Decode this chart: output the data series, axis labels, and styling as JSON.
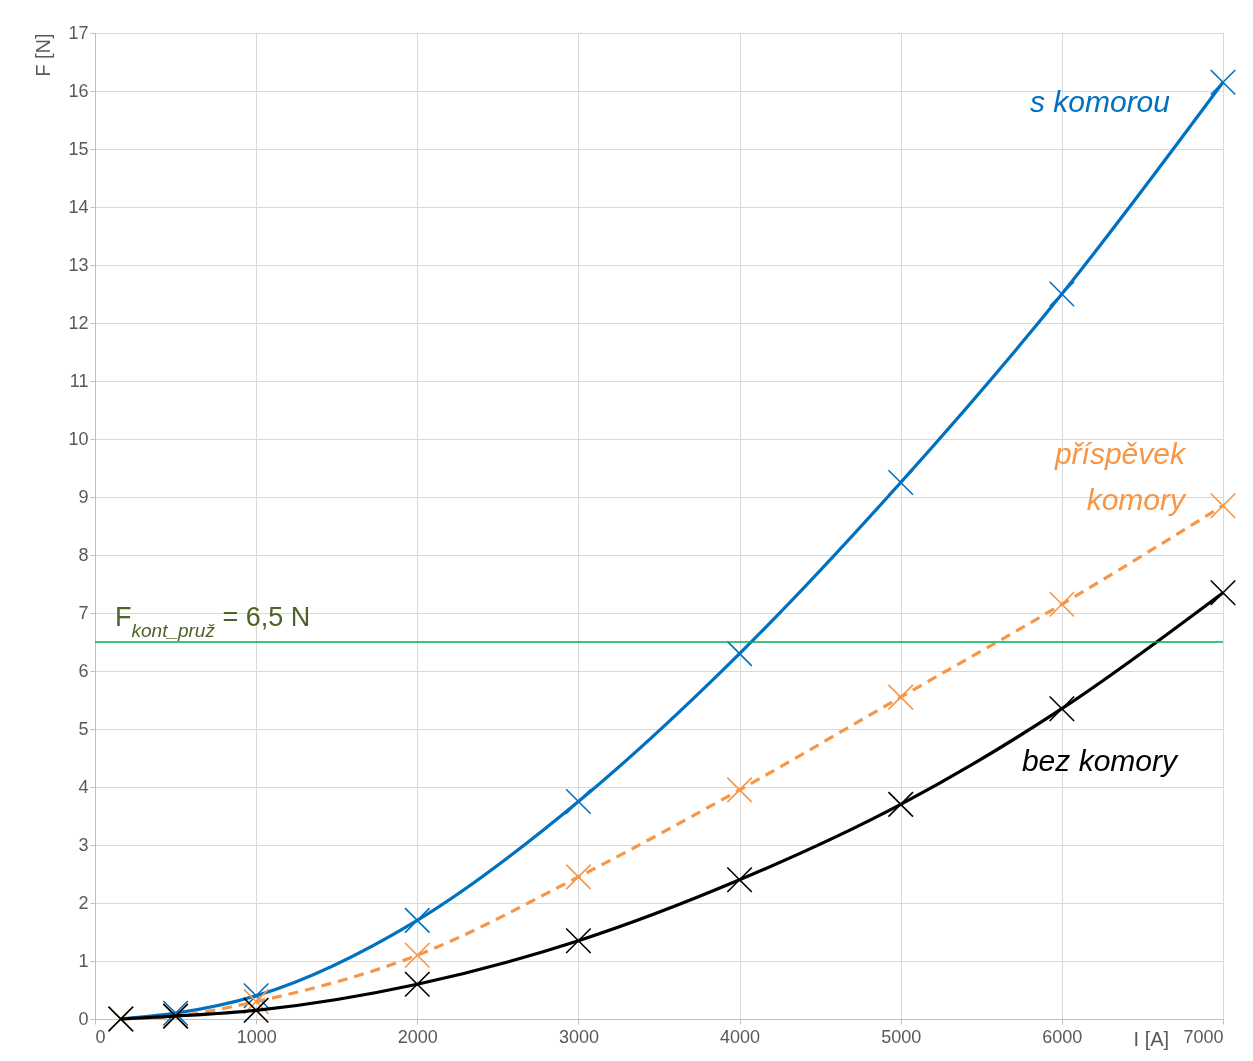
{
  "chart_data": {
    "type": "line",
    "xlabel": "I [A]",
    "ylabel": "F [N]",
    "xlim": [
      0,
      7000
    ],
    "xticks": [
      0,
      1000,
      2000,
      3000,
      4000,
      5000,
      6000,
      7000
    ],
    "ylim": [
      0,
      17
    ],
    "yticks": [
      0,
      1,
      2,
      3,
      4,
      5,
      6,
      7,
      8,
      9,
      10,
      11,
      12,
      13,
      14,
      15,
      16,
      17
    ],
    "grid": true,
    "series": [
      {
        "name": "s komorou",
        "marker": "cross",
        "color": "#0070c0",
        "line_style": "solid",
        "x": [
          160,
          500,
          1000,
          2000,
          3000,
          4000,
          5000,
          6000,
          7000
        ],
        "values": [
          0,
          0.1,
          0.4,
          1.7,
          3.75,
          6.3,
          9.25,
          12.5,
          16.15
        ]
      },
      {
        "name": "příspěvek komory",
        "marker": "cross",
        "color": "#f79646",
        "line_style": "dashed",
        "x": [
          160,
          500,
          1000,
          2000,
          3000,
          4000,
          5000,
          6000,
          7000
        ],
        "values": [
          0,
          0.05,
          0.3,
          1.1,
          2.45,
          3.95,
          5.55,
          7.15,
          8.85
        ]
      },
      {
        "name": "bez komory",
        "marker": "cross",
        "color": "#000000",
        "line_style": "solid",
        "x": [
          160,
          500,
          1000,
          2000,
          3000,
          4000,
          5000,
          6000,
          7000
        ],
        "values": [
          0,
          0.05,
          0.15,
          0.6,
          1.35,
          2.4,
          3.7,
          5.35,
          7.35
        ]
      }
    ],
    "ref_lines": [
      {
        "axis": "y",
        "value": 6.5,
        "label": "F$_{kont_pruž}$ = 6,5 N",
        "color": "#00b050"
      }
    ]
  }
}
